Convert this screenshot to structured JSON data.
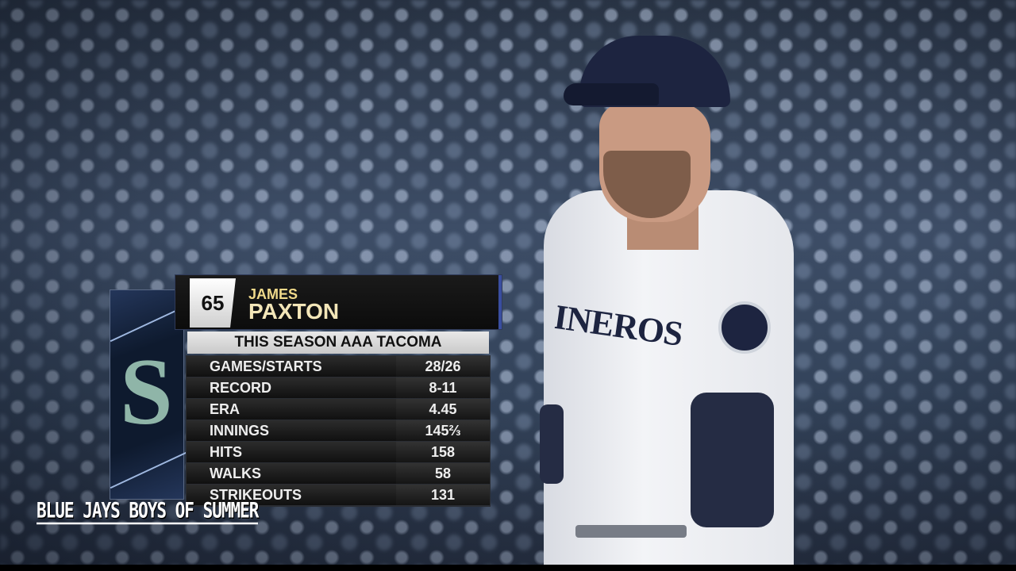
{
  "graphic": {
    "team_logo": "Seattle Mariners S compass logo",
    "number": "65",
    "first_name": "JAMES",
    "last_name": "PAXTON",
    "subtitle": "THIS SEASON AAA TACOMA",
    "stats": [
      {
        "label": "GAMES/STARTS",
        "value": "28/26"
      },
      {
        "label": "RECORD",
        "value": "8-11"
      },
      {
        "label": "ERA",
        "value": "4.45"
      },
      {
        "label": "INNINGS",
        "value": "145⅔"
      },
      {
        "label": "HITS",
        "value": "158"
      },
      {
        "label": "WALKS",
        "value": "58"
      },
      {
        "label": "STRIKEOUTS",
        "value": "131"
      }
    ]
  },
  "player": {
    "jersey_text": "MARINEROS"
  },
  "watermark": "BLUE JAYS BOYS OF SUMMER",
  "colors": {
    "name_gold": "#f0d98a",
    "team_navy": "#1d2440",
    "team_teal": "#8fb5a8"
  }
}
